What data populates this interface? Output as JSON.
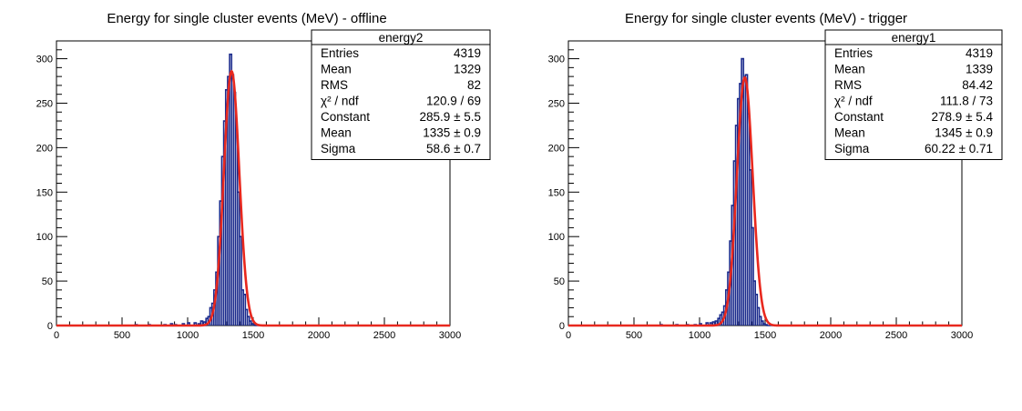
{
  "chart_data": [
    {
      "type": "histogram",
      "title": "Energy for single cluster events (MeV) - offline",
      "xlim": [
        0,
        3000
      ],
      "ylim": [
        0,
        320
      ],
      "x_ticks": [
        0,
        500,
        1000,
        1500,
        2000,
        2500,
        3000
      ],
      "y_ticks": [
        0,
        50,
        100,
        150,
        200,
        250,
        300
      ],
      "grid": false,
      "legend": "top-right",
      "colors": {
        "histogram": "#1a2a8c",
        "fit": "#e8281e"
      },
      "bin_width": 15,
      "histogram": [
        {
          "x": 600,
          "y": 1
        },
        {
          "x": 700,
          "y": 1
        },
        {
          "x": 820,
          "y": 1
        },
        {
          "x": 870,
          "y": 2
        },
        {
          "x": 900,
          "y": 1
        },
        {
          "x": 960,
          "y": 2
        },
        {
          "x": 1000,
          "y": 3
        },
        {
          "x": 1050,
          "y": 3
        },
        {
          "x": 1080,
          "y": 2
        },
        {
          "x": 1100,
          "y": 5
        },
        {
          "x": 1120,
          "y": 4
        },
        {
          "x": 1140,
          "y": 8
        },
        {
          "x": 1155,
          "y": 10
        },
        {
          "x": 1170,
          "y": 20
        },
        {
          "x": 1185,
          "y": 25
        },
        {
          "x": 1200,
          "y": 40
        },
        {
          "x": 1215,
          "y": 60
        },
        {
          "x": 1230,
          "y": 100
        },
        {
          "x": 1245,
          "y": 140
        },
        {
          "x": 1260,
          "y": 190
        },
        {
          "x": 1275,
          "y": 230
        },
        {
          "x": 1290,
          "y": 265
        },
        {
          "x": 1305,
          "y": 280
        },
        {
          "x": 1320,
          "y": 305
        },
        {
          "x": 1335,
          "y": 282
        },
        {
          "x": 1350,
          "y": 262
        },
        {
          "x": 1365,
          "y": 220
        },
        {
          "x": 1380,
          "y": 150
        },
        {
          "x": 1395,
          "y": 100
        },
        {
          "x": 1410,
          "y": 40
        },
        {
          "x": 1425,
          "y": 35
        },
        {
          "x": 1440,
          "y": 18
        },
        {
          "x": 1455,
          "y": 10
        },
        {
          "x": 1470,
          "y": 5
        },
        {
          "x": 1485,
          "y": 2
        },
        {
          "x": 1500,
          "y": 1
        }
      ],
      "stats_box": {
        "name": "energy2",
        "rows": [
          {
            "label": "Entries",
            "value": "4319"
          },
          {
            "label": "Mean",
            "value": "1329"
          },
          {
            "label": "RMS",
            "value": "82"
          },
          {
            "label": "χ² / ndf",
            "value": "120.9 / 69"
          },
          {
            "label": "Constant",
            "value": "285.9 ± 5.5"
          },
          {
            "label": "Mean",
            "value": "1335 ± 0.9"
          },
          {
            "label": "Sigma",
            "value": "58.6 ± 0.7"
          }
        ]
      },
      "fit": {
        "constant": 285.9,
        "mean": 1335,
        "sigma": 58.6
      }
    },
    {
      "type": "histogram",
      "title": "Energy for single cluster events (MeV) - trigger",
      "xlim": [
        0,
        3000
      ],
      "ylim": [
        0,
        320
      ],
      "x_ticks": [
        0,
        500,
        1000,
        1500,
        2000,
        2500,
        3000
      ],
      "y_ticks": [
        0,
        50,
        100,
        150,
        200,
        250,
        300
      ],
      "grid": false,
      "legend": "top-right",
      "colors": {
        "histogram": "#1a2a8c",
        "fit": "#e8281e"
      },
      "bin_width": 15,
      "histogram": [
        {
          "x": 700,
          "y": 1
        },
        {
          "x": 820,
          "y": 1
        },
        {
          "x": 900,
          "y": 1
        },
        {
          "x": 960,
          "y": 1
        },
        {
          "x": 1000,
          "y": 2
        },
        {
          "x": 1050,
          "y": 3
        },
        {
          "x": 1080,
          "y": 3
        },
        {
          "x": 1100,
          "y": 4
        },
        {
          "x": 1120,
          "y": 5
        },
        {
          "x": 1140,
          "y": 8
        },
        {
          "x": 1155,
          "y": 12
        },
        {
          "x": 1170,
          "y": 15
        },
        {
          "x": 1185,
          "y": 22
        },
        {
          "x": 1200,
          "y": 40
        },
        {
          "x": 1215,
          "y": 60
        },
        {
          "x": 1230,
          "y": 95
        },
        {
          "x": 1245,
          "y": 135
        },
        {
          "x": 1260,
          "y": 185
        },
        {
          "x": 1275,
          "y": 225
        },
        {
          "x": 1290,
          "y": 255
        },
        {
          "x": 1305,
          "y": 272
        },
        {
          "x": 1320,
          "y": 300
        },
        {
          "x": 1335,
          "y": 280
        },
        {
          "x": 1350,
          "y": 282
        },
        {
          "x": 1365,
          "y": 238
        },
        {
          "x": 1380,
          "y": 175
        },
        {
          "x": 1395,
          "y": 110
        },
        {
          "x": 1410,
          "y": 50
        },
        {
          "x": 1425,
          "y": 35
        },
        {
          "x": 1440,
          "y": 20
        },
        {
          "x": 1455,
          "y": 10
        },
        {
          "x": 1470,
          "y": 5
        },
        {
          "x": 1485,
          "y": 2
        },
        {
          "x": 1500,
          "y": 1
        }
      ],
      "stats_box": {
        "name": "energy1",
        "rows": [
          {
            "label": "Entries",
            "value": "4319"
          },
          {
            "label": "Mean",
            "value": "1339"
          },
          {
            "label": "RMS",
            "value": "84.42"
          },
          {
            "label": "χ² / ndf",
            "value": "111.8 / 73"
          },
          {
            "label": "Constant",
            "value": "278.9 ± 5.4"
          },
          {
            "label": "Mean",
            "value": "1345 ± 0.9"
          },
          {
            "label": "Sigma",
            "value": "60.22 ± 0.71"
          }
        ]
      },
      "fit": {
        "constant": 278.9,
        "mean": 1345,
        "sigma": 60.22
      }
    }
  ]
}
